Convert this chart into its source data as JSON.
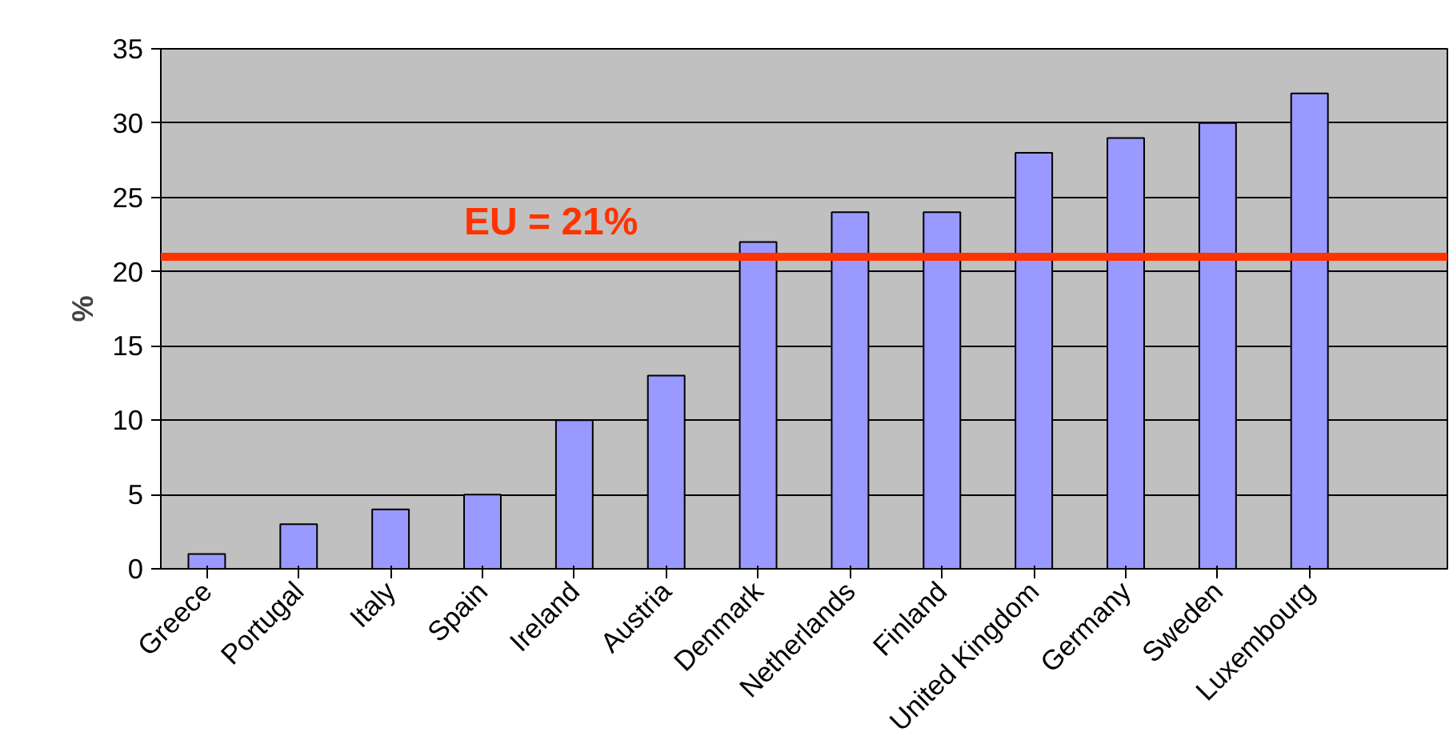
{
  "chart_data": {
    "type": "bar",
    "ylabel": "%",
    "categories": [
      "Greece",
      "Portugal",
      "Italy",
      "Spain",
      "Ireland",
      "Austria",
      "Denmark",
      "Netherlands",
      "Finland",
      "United Kingdom",
      "Germany",
      "Sweden",
      "Luxembourg",
      null
    ],
    "values": [
      1,
      3,
      4,
      5,
      10,
      13,
      22,
      24,
      24,
      28,
      29,
      30,
      32,
      null
    ],
    "color": "#9999ff",
    "ylim": [
      0,
      35
    ],
    "yticks": [
      0,
      5,
      10,
      15,
      20,
      25,
      30,
      35
    ],
    "grid": "y",
    "ref_lines": [
      {
        "axis": "y",
        "value": 21,
        "label": "EU = 21%",
        "color": "#ff3300"
      }
    ]
  }
}
